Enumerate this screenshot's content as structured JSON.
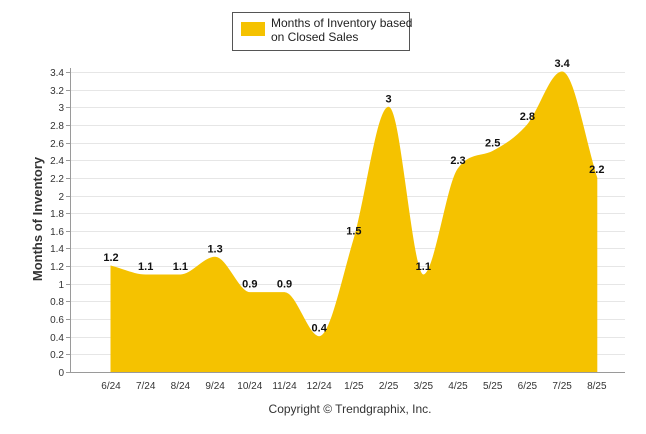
{
  "chart_data": {
    "type": "area",
    "categories": [
      "6/24",
      "7/24",
      "8/24",
      "9/24",
      "10/24",
      "11/24",
      "12/24",
      "1/25",
      "2/25",
      "3/25",
      "4/25",
      "5/25",
      "6/25",
      "7/25",
      "8/25"
    ],
    "series": [
      {
        "name": "Months of Inventory based on Closed Sales",
        "values": [
          1.2,
          1.1,
          1.1,
          1.3,
          0.9,
          0.9,
          0.4,
          1.5,
          3,
          1.1,
          2.3,
          2.5,
          2.8,
          3.4,
          2.2
        ],
        "color": "#f5c200"
      }
    ],
    "data_labels": [
      "1.2",
      "1.1",
      "1.1",
      "1.3",
      "0.9",
      "0.9",
      "0.4",
      "1.5",
      "3",
      "1.1",
      "2.3",
      "2.5",
      "2.8",
      "3.4",
      "2.2"
    ],
    "ylabel": "Months of Inventory",
    "xlabel": "",
    "ylim": [
      0,
      3.4
    ],
    "yticks": [
      "0",
      "0.2",
      "0.4",
      "0.6",
      "0.8",
      "1",
      "1.2",
      "1.4",
      "1.6",
      "1.8",
      "2",
      "2.2",
      "2.4",
      "2.6",
      "2.8",
      "3",
      "3.2",
      "3.4"
    ],
    "grid": true,
    "legend_position": "top-center",
    "legend_lines": [
      "Months of Inventory based",
      "on Closed Sales"
    ]
  },
  "footer": "Copyright © Trendgraphix, Inc."
}
